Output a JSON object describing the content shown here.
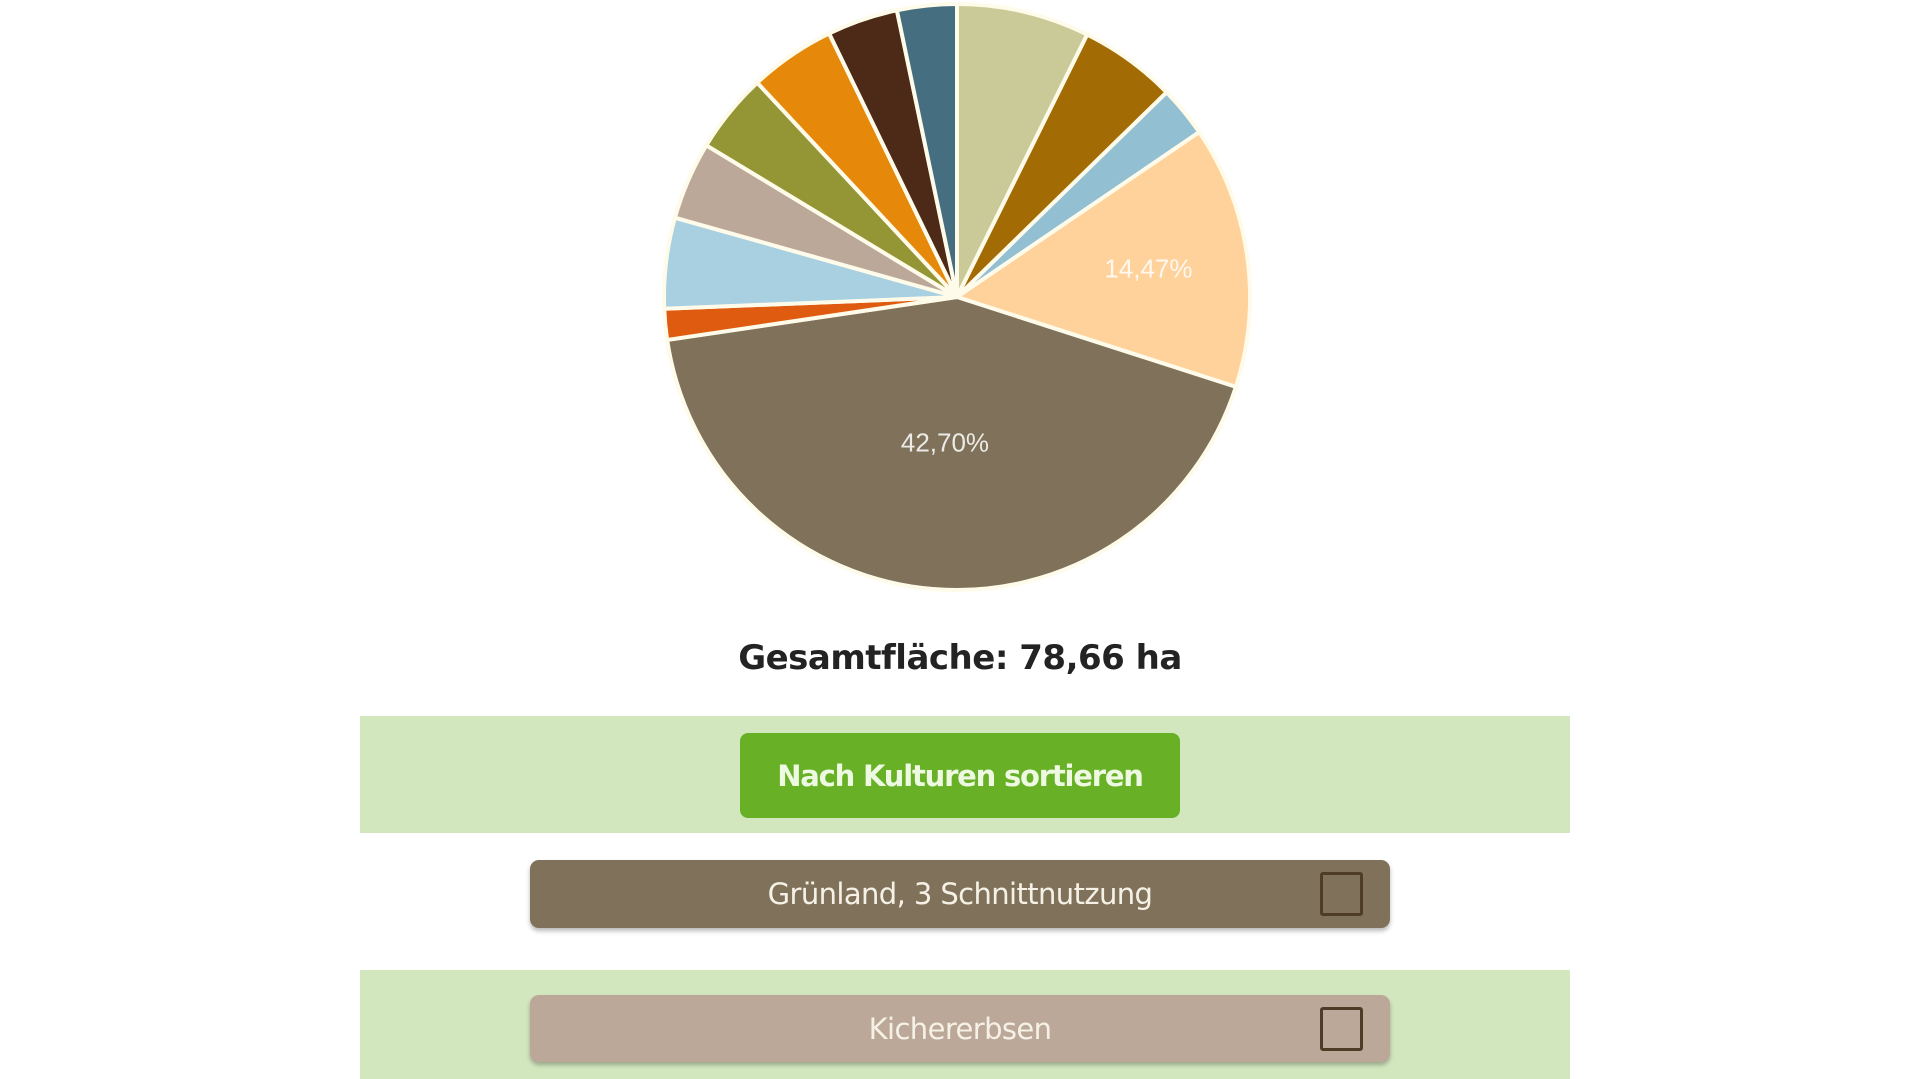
{
  "chart_data": {
    "type": "pie",
    "title": "",
    "start_angle_deg": 0,
    "direction": "clockwise",
    "slice_border_color": "#fffbea",
    "slices": [
      {
        "value": 7.33,
        "color": "#c9ca98",
        "label": ""
      },
      {
        "value": 5.36,
        "color": "#a36b04",
        "label": ""
      },
      {
        "value": 2.8,
        "color": "#93bfd2",
        "label": ""
      },
      {
        "value": 14.47,
        "color": "#fed29a",
        "label": "14,47%"
      },
      {
        "value": 42.7,
        "color": "#80725a",
        "label": "42,70%"
      },
      {
        "value": 1.7,
        "color": "#de5b0f",
        "label": ""
      },
      {
        "value": 5.0,
        "color": "#a9d0e1",
        "label": ""
      },
      {
        "value": 4.3,
        "color": "#bca898",
        "label": ""
      },
      {
        "value": 4.4,
        "color": "#949636",
        "label": ""
      },
      {
        "value": 4.75,
        "color": "#e6890b",
        "label": ""
      },
      {
        "value": 3.9,
        "color": "#4c2a17",
        "label": ""
      },
      {
        "value": 3.29,
        "color": "#456e81",
        "label": ""
      }
    ]
  },
  "summary": {
    "total_area": "Gesamtfläche: 78,66 ha"
  },
  "controls": {
    "sort_button_label": "Nach Kulturen sortieren"
  },
  "crops": [
    {
      "name": "Grünland, 3 Schnittnutzung",
      "color": "#80725a",
      "checked": false
    },
    {
      "name": "Kichererbsen",
      "color": "#bca898",
      "checked": false
    }
  ],
  "colors": {
    "band_green": "#d3e7bf",
    "button_green": "#68b127",
    "checkbox_border": "#4f3c26"
  }
}
